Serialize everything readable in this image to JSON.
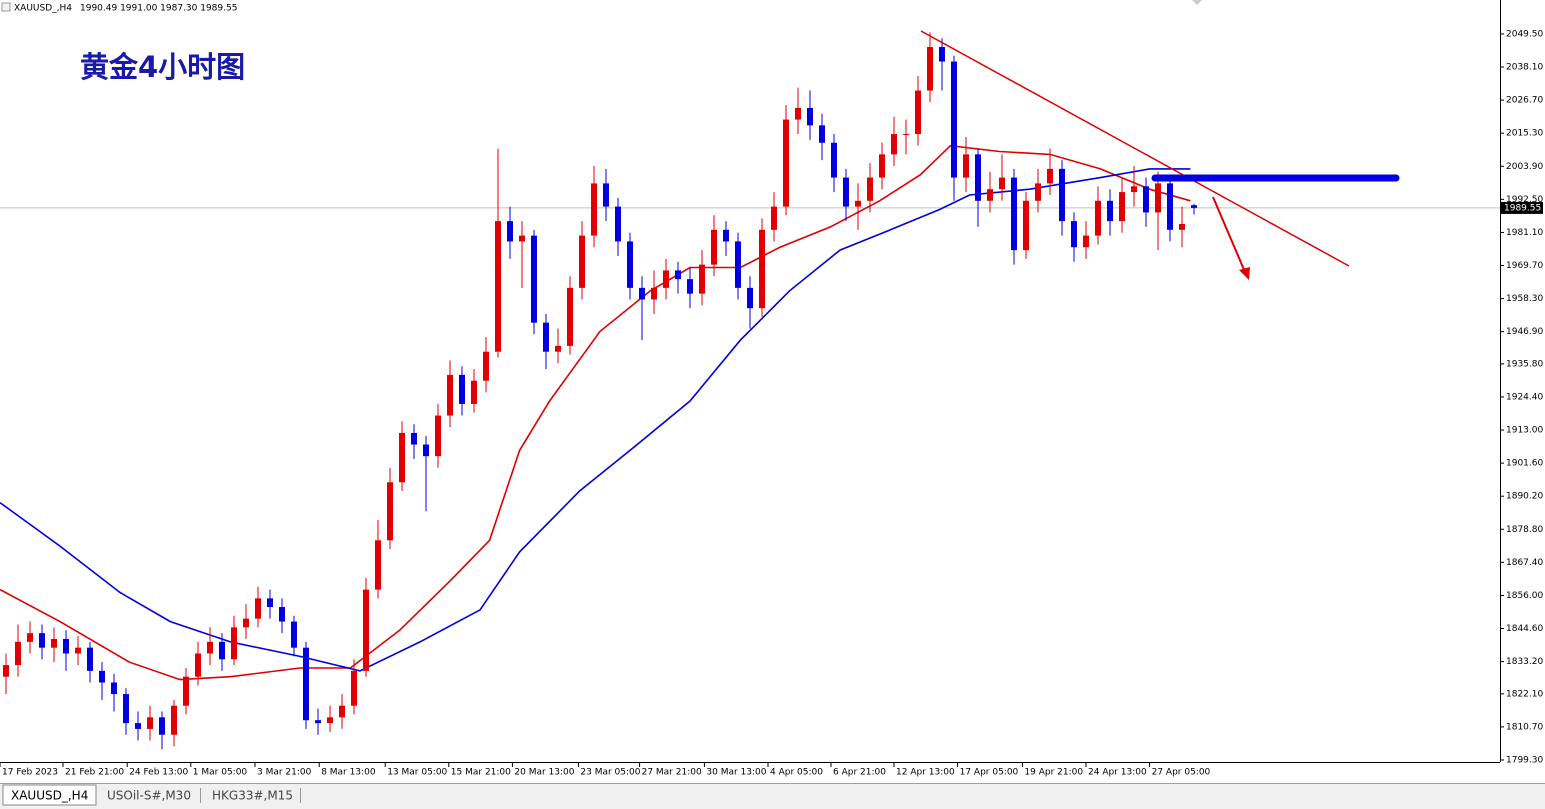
{
  "chart_data": {
    "type": "candlestick",
    "symbol": "XAUUSD_,H4",
    "ohlc_text": "1990.49 1991.00 1987.30 1989.55",
    "title": "黄金4小时图",
    "xlim": [
      -0.5,
      124.5
    ],
    "ylim": [
      1798.6,
      2061.2
    ],
    "yticks": [
      {
        "value": 2049.5,
        "label": "2049.50"
      },
      {
        "value": 2038.1,
        "label": "2038.10"
      },
      {
        "value": 2026.7,
        "label": "2026.70"
      },
      {
        "value": 2015.3,
        "label": "2015.30"
      },
      {
        "value": 2003.9,
        "label": "2003.90"
      },
      {
        "value": 1992.5,
        "label": "1992.50"
      },
      {
        "value": 1981.1,
        "label": "1981.10"
      },
      {
        "value": 1969.7,
        "label": "1969.70"
      },
      {
        "value": 1958.3,
        "label": "1958.30"
      },
      {
        "value": 1946.9,
        "label": "1946.90"
      },
      {
        "value": 1935.8,
        "label": "1935.80"
      },
      {
        "value": 1924.4,
        "label": "1924.40"
      },
      {
        "value": 1913,
        "label": "1913.00"
      },
      {
        "value": 1901.6,
        "label": "1901.60"
      },
      {
        "value": 1890.2,
        "label": "1890.20"
      },
      {
        "value": 1878.8,
        "label": "1878.80"
      },
      {
        "value": 1867.4,
        "label": "1867.40"
      },
      {
        "value": 1856,
        "label": "1856.00"
      },
      {
        "value": 1844.6,
        "label": "1844.60"
      },
      {
        "value": 1833.2,
        "label": "1833.20"
      },
      {
        "value": 1822.1,
        "label": "1822.10"
      },
      {
        "value": 1810.7,
        "label": "1810.70"
      },
      {
        "value": 1799.3,
        "label": "1799.30"
      }
    ],
    "xticks": [
      {
        "value": -0.5,
        "label": "17 Feb 2023"
      },
      {
        "value": 4.75,
        "label": "21 Feb 21:00"
      },
      {
        "value": 10.1,
        "label": "24 Feb 13:00"
      },
      {
        "value": 15.4,
        "label": "1 Mar 05:00"
      },
      {
        "value": 20.75,
        "label": "3 Mar 21:00"
      },
      {
        "value": 26.1,
        "label": "8 Mar 13:00"
      },
      {
        "value": 31.6,
        "label": "13 Mar 05:00"
      },
      {
        "value": 36.9,
        "label": "15 Mar 21:00"
      },
      {
        "value": 42.2,
        "label": "20 Mar 13:00"
      },
      {
        "value": 47.7,
        "label": "23 Mar 05:00"
      },
      {
        "value": 52.8,
        "label": "27 Mar 21:00"
      },
      {
        "value": 58.2,
        "label": "30 Mar 13:00"
      },
      {
        "value": 63.5,
        "label": "4 Apr 05:00"
      },
      {
        "value": 68.75,
        "label": "6 Apr 21:00"
      },
      {
        "value": 74,
        "label": "12 Apr 13:00"
      },
      {
        "value": 79.3,
        "label": "17 Apr 05:00"
      },
      {
        "value": 84.7,
        "label": "19 Apr 21:00"
      },
      {
        "value": 90,
        "label": "24 Apr 13:00"
      },
      {
        "value": 95.3,
        "label": "27 Apr 05:00"
      }
    ],
    "up_color": "#e00000",
    "down_color": "#0000e0",
    "open": [
      1828,
      1832,
      1840,
      1843,
      1838,
      1841,
      1836,
      1838,
      1830,
      1826,
      1822,
      1812,
      1810,
      1814,
      1808,
      1818,
      1828,
      1836,
      1840,
      1834,
      1845,
      1848,
      1855,
      1852,
      1847,
      1838,
      1813,
      1812,
      1814,
      1818,
      1830,
      1858,
      1875,
      1895,
      1912,
      1908,
      1904,
      1918,
      1932,
      1922,
      1930,
      1940,
      1985,
      1978,
      1980,
      1950,
      1940,
      1942,
      1962,
      1980,
      1998,
      1990,
      1978,
      1962,
      1958,
      1962,
      1968,
      1965,
      1960,
      1970,
      1982,
      1978,
      1962,
      1955,
      1982,
      1990,
      2020,
      2024,
      2018,
      2012,
      2000,
      1990,
      1992,
      2000,
      2008,
      2015,
      2015,
      2030,
      2045,
      2040,
      2000,
      2008,
      1992,
      1996,
      2000,
      1975,
      1992,
      1998,
      2003,
      1985,
      1976,
      1980,
      1992,
      1985,
      1995,
      1997,
      1988,
      1998,
      1982,
      1990.49
    ],
    "high": [
      1836,
      1846,
      1847,
      1846,
      1845,
      1844,
      1842,
      1840,
      1833,
      1829,
      1824,
      1816,
      1818,
      1816,
      1820,
      1831,
      1840,
      1845,
      1843,
      1849,
      1853,
      1859,
      1858,
      1855,
      1849,
      1840,
      1817,
      1818,
      1822,
      1834,
      1862,
      1882,
      1900,
      1916,
      1915,
      1911,
      1922,
      1937,
      1935,
      1934,
      1945,
      2010,
      1990,
      1985,
      1982,
      1953,
      1948,
      1966,
      1985,
      2004,
      2003,
      1993,
      1981,
      1966,
      1968,
      1972,
      1971,
      1969,
      1975,
      1987,
      1985,
      1981,
      1966,
      1986,
      1995,
      2025,
      2031,
      2030,
      2022,
      2015,
      2003,
      1998,
      2005,
      2012,
      2021,
      2020,
      2035,
      2050,
      2048,
      2042,
      2014,
      2010,
      2002,
      2008,
      2003,
      1995,
      2003,
      2010,
      2006,
      1988,
      1985,
      1997,
      1996,
      2000,
      2004,
      2000,
      2002,
      2000,
      1990,
      1991
    ],
    "low": [
      1822,
      1828,
      1836,
      1834,
      1833,
      1830,
      1832,
      1826,
      1820,
      1816,
      1808,
      1806,
      1806,
      1803,
      1804,
      1815,
      1825,
      1832,
      1830,
      1832,
      1841,
      1845,
      1848,
      1843,
      1835,
      1810,
      1808,
      1809,
      1810,
      1815,
      1828,
      1855,
      1872,
      1892,
      1903,
      1885,
      1900,
      1914,
      1918,
      1919,
      1926,
      1938,
      1972,
      1962,
      1946,
      1934,
      1936,
      1939,
      1958,
      1976,
      1985,
      1973,
      1958,
      1944,
      1953,
      1958,
      1960,
      1955,
      1956,
      1966,
      1973,
      1958,
      1948,
      1952,
      1978,
      1987,
      2015,
      2013,
      2006,
      1995,
      1985,
      1982,
      1988,
      1996,
      2004,
      2008,
      2011,
      2026,
      2030,
      1992,
      1995,
      1983,
      1988,
      1992,
      1970,
      1972,
      1988,
      1994,
      1980,
      1971,
      1972,
      1977,
      1980,
      1981,
      1990,
      1983,
      1975,
      1978,
      1976,
      1987.3
    ],
    "close": [
      1832,
      1840,
      1843,
      1838,
      1841,
      1836,
      1838,
      1830,
      1826,
      1822,
      1812,
      1810,
      1814,
      1808,
      1818,
      1828,
      1836,
      1840,
      1834,
      1845,
      1848,
      1855,
      1852,
      1847,
      1838,
      1813,
      1812,
      1814,
      1818,
      1830,
      1858,
      1875,
      1895,
      1912,
      1908,
      1904,
      1918,
      1932,
      1922,
      1930,
      1940,
      1985,
      1978,
      1980,
      1950,
      1940,
      1942,
      1962,
      1980,
      1998,
      1990,
      1978,
      1962,
      1958,
      1962,
      1968,
      1965,
      1960,
      1970,
      1982,
      1978,
      1962,
      1955,
      1982,
      1990,
      2020,
      2024,
      2018,
      2012,
      2000,
      1990,
      1992,
      2000,
      2008,
      2015,
      2015,
      2030,
      2045,
      2040,
      2000,
      2008,
      1992,
      1996,
      2000,
      1975,
      1992,
      1998,
      2003,
      1985,
      1976,
      1980,
      1992,
      1985,
      1995,
      1997,
      1988,
      1998,
      1982,
      1984,
      1989.55
    ],
    "moving_averages": [
      {
        "color": "#e00000",
        "x": [
          -0.5,
          4.5,
          10.3,
          14.5,
          18.7,
          24.5,
          28.7,
          32.8,
          37,
          40.3,
          42.8,
          45.3,
          49.5,
          53.7,
          57,
          61.2,
          64.5,
          68.7,
          72.8,
          76.2,
          78.7,
          82.8,
          87,
          91.2,
          95.3,
          98.7
        ],
        "values": [
          1858,
          1847,
          1833,
          1827,
          1828,
          1831,
          1831,
          1844,
          1861,
          1875,
          1906,
          1923,
          1947,
          1961,
          1969,
          1969,
          1976,
          1983,
          1992,
          2001,
          2011,
          2009,
          2008,
          2003,
          1996,
          1992
        ]
      },
      {
        "color": "#0000e0",
        "x": [
          -0.5,
          4.5,
          9.5,
          13.7,
          18.7,
          24.5,
          29.5,
          34.5,
          39.5,
          42.8,
          47.8,
          52,
          57,
          61.2,
          65.3,
          69.5,
          73.7,
          77.8,
          80.3,
          85.3,
          91.2,
          95.3,
          98.7
        ],
        "values": [
          1888,
          1873,
          1857,
          1847,
          1840,
          1835,
          1830,
          1840,
          1851,
          1871,
          1892,
          1906,
          1923,
          1944,
          1961,
          1975,
          1982,
          1989,
          1994,
          1996,
          2000,
          2003,
          2003
        ]
      }
    ],
    "current_price": {
      "value": 1989.55,
      "label": "1989.55"
    }
  },
  "tabs": [
    "XAUUSD_,H4",
    "USOil-S#,M30",
    "HKG33#,M15"
  ]
}
